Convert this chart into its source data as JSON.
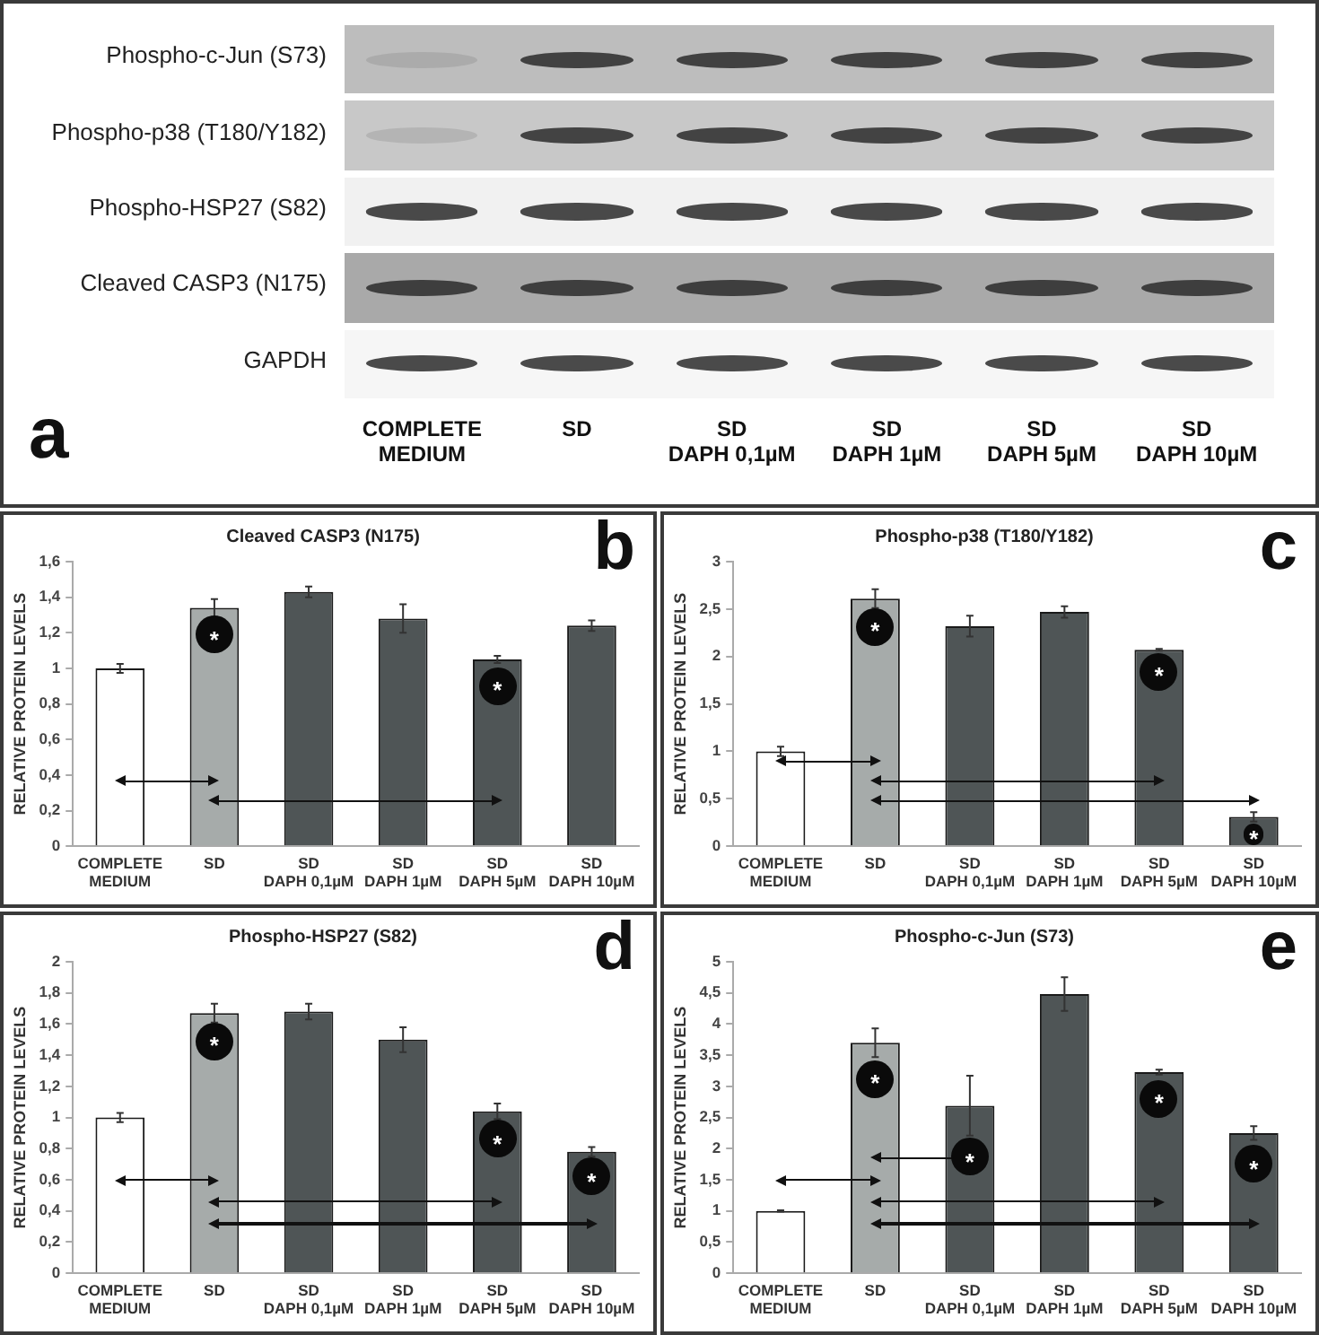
{
  "chart_data": [
    {
      "type": "other",
      "categories": [
        "COMPLETE\nMEDIUM",
        "SD",
        "SD\nDAPH 0,1µM",
        "SD\nDAPH 1µM",
        "SD\nDAPH 5µM",
        "SD\nDAPH 10µM"
      ],
      "y_categories": [
        "Phospho-c-Jun (S73)",
        "Phospho-p38 (T180/Y182)",
        "Phospho-HSP27 (S82)",
        "Cleaved CASP3 (N175)",
        "GAPDH"
      ],
      "annotations": [
        "a"
      ]
    },
    {
      "type": "bar",
      "title": "Cleaved CASP3 (N175)",
      "ylabel": "RELATIVE PROTEIN LEVELS",
      "categories": [
        "COMPLETE\nMEDIUM",
        "SD",
        "SD\nDAPH 0,1µM",
        "SD\nDAPH 1µM",
        "SD\nDAPH 5µM",
        "SD\nDAPH 10µM"
      ],
      "values": [
        1.0,
        1.34,
        1.43,
        1.28,
        1.05,
        1.24
      ],
      "errors": [
        0.025,
        0.05,
        0.03,
        0.08,
        0.02,
        0.03
      ],
      "colors": [
        "#ffffff",
        "#a6abaa",
        "#4f5556",
        "#4f5556",
        "#4f5556",
        "#4f5556"
      ],
      "ylim": [
        0,
        1.6
      ],
      "yticks": [
        0,
        {
          "value": 0.2,
          "label": "0,2"
        },
        {
          "value": 0.4,
          "label": "0,4"
        },
        {
          "value": 0.6,
          "label": "0,6"
        },
        {
          "value": 0.8,
          "label": "0,8"
        },
        1,
        {
          "value": 1.2,
          "label": "1,2"
        },
        {
          "value": 1.4,
          "label": "1,4"
        },
        {
          "value": 1.6,
          "label": "1,6"
        }
      ],
      "annotations": [
        "b",
        {
          "text": "*",
          "x": "SD",
          "y": 1.19
        },
        {
          "text": "*",
          "x": "SD\nDAPH 5µM",
          "y": 0.9
        }
      ]
    },
    {
      "type": "bar",
      "title": "Phospho-p38 (T180/Y182)",
      "ylabel": "RELATIVE PROTEIN LEVELS",
      "categories": [
        "COMPLETE\nMEDIUM",
        "SD",
        "SD\nDAPH 0,1µM",
        "SD\nDAPH 1µM",
        "SD\nDAPH 5µM",
        "SD\nDAPH 10µM"
      ],
      "values": [
        1.0,
        2.61,
        2.32,
        2.47,
        2.07,
        0.31
      ],
      "errors": [
        0.05,
        0.1,
        0.11,
        0.06,
        0.01,
        0.05
      ],
      "colors": [
        "#ffffff",
        "#a6abaa",
        "#4f5556",
        "#4f5556",
        "#4f5556",
        "#4f5556"
      ],
      "ylim": [
        0,
        3
      ],
      "yticks": [
        0,
        {
          "value": 0.5,
          "label": "0,5"
        },
        1,
        {
          "value": 1.5,
          "label": "1,5"
        },
        2,
        {
          "value": 2.5,
          "label": "2,5"
        },
        3
      ],
      "annotations": [
        "c",
        {
          "text": "*",
          "x": "SD",
          "y": 2.31
        },
        {
          "text": "*",
          "x": "SD\nDAPH 5µM",
          "y": 1.84
        },
        {
          "text": "*",
          "x": "SD\nDAPH 10µM",
          "y": 0.13
        }
      ]
    },
    {
      "type": "bar",
      "title": "Phospho-HSP27 (S82)",
      "ylabel": "RELATIVE PROTEIN LEVELS",
      "categories": [
        "COMPLETE\nMEDIUM",
        "SD",
        "SD\nDAPH 0,1µM",
        "SD\nDAPH 1µM",
        "SD\nDAPH 5µM",
        "SD\nDAPH 10µM"
      ],
      "values": [
        1.0,
        1.67,
        1.68,
        1.5,
        1.04,
        0.78
      ],
      "errors": [
        0.03,
        0.06,
        0.05,
        0.08,
        0.05,
        0.03
      ],
      "colors": [
        "#ffffff",
        "#a6abaa",
        "#4f5556",
        "#4f5556",
        "#4f5556",
        "#4f5556"
      ],
      "ylim": [
        0,
        2
      ],
      "yticks": [
        0,
        {
          "value": 0.2,
          "label": "0,2"
        },
        {
          "value": 0.4,
          "label": "0,4"
        },
        {
          "value": 0.6,
          "label": "0,6"
        },
        {
          "value": 0.8,
          "label": "0,8"
        },
        1,
        {
          "value": 1.2,
          "label": "1,2"
        },
        {
          "value": 1.4,
          "label": "1,4"
        },
        {
          "value": 1.6,
          "label": "1,6"
        },
        {
          "value": 1.8,
          "label": "1,8"
        },
        2
      ],
      "annotations": [
        "d",
        {
          "text": "*",
          "x": "SD",
          "y": 1.49
        },
        {
          "text": "*",
          "x": "SD\nDAPH 5µM",
          "y": 0.86
        },
        {
          "text": "*",
          "x": "SD\nDAPH 10µM",
          "y": 0.62
        }
      ]
    },
    {
      "type": "bar",
      "title": "Phospho-c-Jun (S73)",
      "ylabel": "RELATIVE PROTEIN LEVELS",
      "categories": [
        "COMPLETE\nMEDIUM",
        "SD",
        "SD\nDAPH 0,1µM",
        "SD\nDAPH 1µM",
        "SD\nDAPH 5µM",
        "SD\nDAPH 10µM"
      ],
      "values": [
        1.0,
        3.7,
        2.69,
        4.48,
        3.23,
        2.25
      ],
      "errors": [
        0.01,
        0.23,
        0.48,
        0.27,
        0.04,
        0.11
      ],
      "colors": [
        "#ffffff",
        "#a6abaa",
        "#4f5556",
        "#4f5556",
        "#4f5556",
        "#4f5556"
      ],
      "ylim": [
        0,
        5
      ],
      "yticks": [
        0,
        {
          "value": 0.5,
          "label": "0,5"
        },
        1,
        {
          "value": 1.5,
          "label": "1,5"
        },
        2,
        {
          "value": 2.5,
          "label": "2,5"
        },
        3,
        {
          "value": 3.5,
          "label": "3,5"
        },
        4,
        {
          "value": 4.5,
          "label": "4,5"
        },
        5
      ],
      "annotations": [
        "e",
        {
          "text": "*",
          "x": "SD\nDAPH 0,1µM",
          "y": 1.87
        },
        {
          "text": "*",
          "x": "SD",
          "y": 3.12
        },
        {
          "text": "*",
          "x": "SD\nDAPH 5µM",
          "y": 2.81
        },
        {
          "text": "*",
          "x": "SD\nDAPH 10µM",
          "y": 1.75
        }
      ]
    }
  ]
}
